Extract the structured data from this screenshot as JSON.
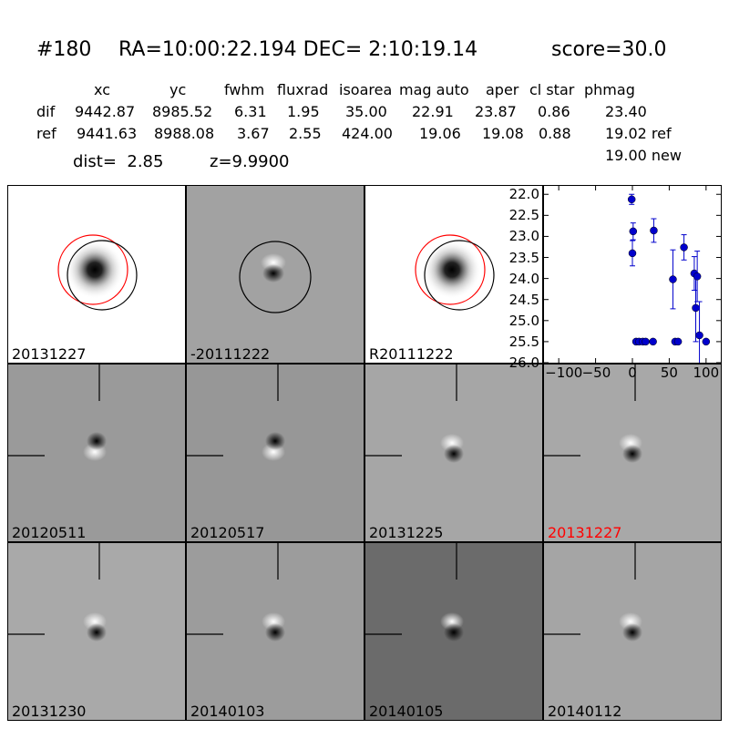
{
  "header": {
    "id": "#180",
    "coords": "RA=10:00:22.194 DEC= 2:10:19.14",
    "score": "score=30.0"
  },
  "table": {
    "columns": [
      "xc",
      "yc",
      "fwhm",
      "fluxrad",
      "isoarea",
      "mag auto",
      "aper",
      "cl star",
      "phmag"
    ],
    "rows": [
      {
        "label": "dif",
        "values": [
          "9442.87",
          "8985.52",
          "6.31",
          "1.95",
          "35.00",
          "22.91",
          "23.87",
          "0.86",
          "23.40"
        ]
      },
      {
        "label": "ref",
        "values": [
          "9441.63",
          "8988.08",
          "3.67",
          "2.55",
          "424.00",
          "19.06",
          "19.08",
          "0.88",
          "19.02 ref"
        ]
      }
    ],
    "extra_phmag": "19.00 new",
    "dist": "dist=  2.85",
    "z": "z=9.9900"
  },
  "panels": [
    {
      "label": "20131227",
      "label_color": "#000000",
      "bg": "#ffffff",
      "kind": "star-red"
    },
    {
      "label": "-20111222",
      "label_color": "#000000",
      "bg": "#a2a2a2",
      "kind": "diff-black"
    },
    {
      "label": "R20111222",
      "label_color": "#000000",
      "bg": "#ffffff",
      "kind": "star-red-only"
    },
    {
      "label": "20120511",
      "label_color": "#000000",
      "bg": "#9a9a9a",
      "kind": "dipole-down"
    },
    {
      "label": "20120517",
      "label_color": "#000000",
      "bg": "#979797",
      "kind": "dipole-down"
    },
    {
      "label": "20131225",
      "label_color": "#000000",
      "bg": "#a6a6a6",
      "kind": "dipole-up"
    },
    {
      "label": "20131227",
      "label_color": "#ff0000",
      "bg": "#a8a8a8",
      "kind": "dipole-up"
    },
    {
      "label": "20131230",
      "label_color": "#000000",
      "bg": "#a9a9a9",
      "kind": "dipole-up"
    },
    {
      "label": "20140103",
      "label_color": "#000000",
      "bg": "#9c9c9c",
      "kind": "dipole-up"
    },
    {
      "label": "20140105",
      "label_color": "#000000",
      "bg": "#6b6b6b",
      "kind": "dipole-up"
    },
    {
      "label": "20140112",
      "label_color": "#000000",
      "bg": "#a5a5a5",
      "kind": "dipole-up"
    }
  ],
  "chart_data": {
    "type": "scatter",
    "xlim": [
      -120,
      120
    ],
    "ylim": [
      26.0,
      21.8
    ],
    "xticks": [
      -100,
      -50,
      0,
      50,
      100
    ],
    "xtick_labels": [
      "−100",
      "−50",
      "0",
      "50",
      "100"
    ],
    "yticks": [
      22.0,
      22.5,
      23.0,
      23.5,
      24.0,
      24.5,
      25.0,
      25.5,
      26.0
    ],
    "ytick_labels": [
      "22.0",
      "22.5",
      "23.0",
      "23.5",
      "24.0",
      "24.5",
      "25.0",
      "25.5",
      "26.0"
    ],
    "color": "#0000cc",
    "points": [
      {
        "x": -1,
        "y": 22.12,
        "err": 0.12
      },
      {
        "x": 0,
        "y": 23.4,
        "err": 0.3
      },
      {
        "x": 1,
        "y": 22.88,
        "err": 0.2
      },
      {
        "x": 5,
        "y": 25.5,
        "err": 0
      },
      {
        "x": 9,
        "y": 25.5,
        "err": 0
      },
      {
        "x": 14,
        "y": 25.5,
        "err": 0
      },
      {
        "x": 18,
        "y": 25.5,
        "err": 0
      },
      {
        "x": 28,
        "y": 25.5,
        "err": 0
      },
      {
        "x": 29,
        "y": 22.86,
        "err": 0.28
      },
      {
        "x": 55,
        "y": 24.02,
        "err": 0.7
      },
      {
        "x": 58,
        "y": 25.5,
        "err": 0
      },
      {
        "x": 62,
        "y": 25.5,
        "err": 0
      },
      {
        "x": 70,
        "y": 23.26,
        "err": 0.3
      },
      {
        "x": 84,
        "y": 23.88,
        "err": 0.4
      },
      {
        "x": 86,
        "y": 24.7,
        "err": 0.8
      },
      {
        "x": 88,
        "y": 23.95,
        "err": 0.6
      },
      {
        "x": 91,
        "y": 25.35,
        "err": 0.8
      },
      {
        "x": 100,
        "y": 25.5,
        "err": 0
      }
    ]
  }
}
